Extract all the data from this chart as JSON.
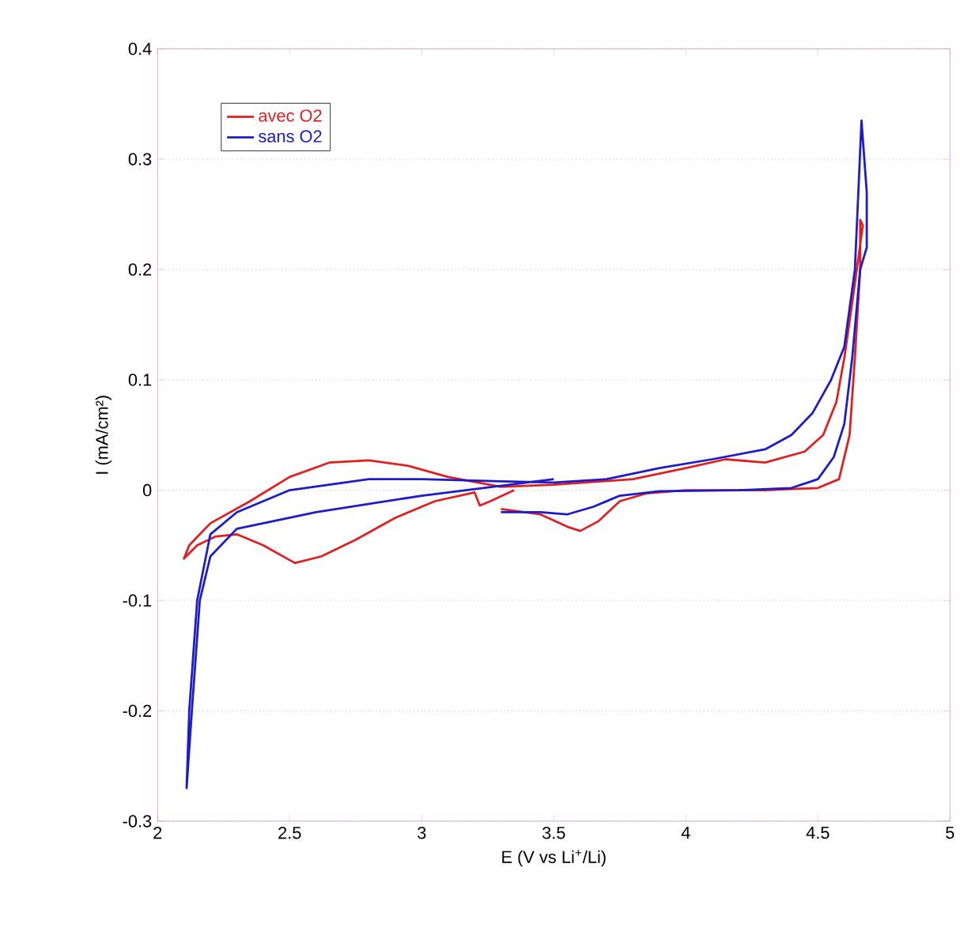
{
  "chart_data": {
    "type": "line",
    "xlabel": "E  (V vs Li$^{+}$/Li)",
    "ylabel": "I (mA/cm²)",
    "xlim": [
      2,
      5
    ],
    "ylim": [
      -0.3,
      0.4
    ],
    "xticks": [
      2,
      2.5,
      3,
      3.5,
      4,
      4.5,
      5
    ],
    "yticks": [
      -0.3,
      -0.2,
      -0.1,
      0,
      0.1,
      0.2,
      0.3,
      0.4
    ],
    "grid": "y",
    "legend": "top left",
    "marker": "none",
    "line_style": "solid",
    "series": [
      {
        "name": "avec O2",
        "color": "#e02020",
        "x": [
          3.3,
          3.45,
          3.55,
          3.6,
          3.67,
          3.75,
          3.85,
          4.0,
          4.3,
          4.5,
          4.58,
          4.62,
          4.64,
          4.66,
          4.66,
          4.67,
          4.63,
          4.6,
          4.57,
          4.52,
          4.45,
          4.3,
          4.15,
          4.0,
          3.8,
          3.5,
          3.3,
          3.1,
          2.95,
          2.8,
          2.65,
          2.5,
          2.35,
          2.2,
          2.12,
          2.1,
          2.15,
          2.22,
          2.3,
          2.4,
          2.52,
          2.62,
          2.75,
          2.9,
          3.05,
          3.2,
          3.22,
          3.26,
          3.35
        ],
        "values": [
          -0.017,
          -0.022,
          -0.033,
          -0.037,
          -0.028,
          -0.01,
          -0.003,
          0,
          0,
          0.002,
          0.01,
          0.05,
          0.12,
          0.2,
          0.245,
          0.24,
          0.17,
          0.12,
          0.08,
          0.05,
          0.035,
          0.025,
          0.028,
          0.02,
          0.01,
          0.005,
          0.003,
          0.012,
          0.022,
          0.027,
          0.025,
          0.012,
          -0.01,
          -0.03,
          -0.05,
          -0.062,
          -0.05,
          -0.042,
          -0.04,
          -0.05,
          -0.066,
          -0.06,
          -0.045,
          -0.025,
          -0.01,
          -0.002,
          -0.014,
          -0.01,
          0
        ]
      },
      {
        "name": "sans O2",
        "color": "#1c1cc8",
        "x": [
          3.3,
          3.45,
          3.55,
          3.65,
          3.75,
          3.9,
          4.2,
          4.4,
          4.5,
          4.56,
          4.6,
          4.63,
          4.66,
          4.685,
          4.685,
          4.665,
          4.655,
          4.64,
          4.6,
          4.55,
          4.48,
          4.4,
          4.3,
          4.1,
          3.9,
          3.7,
          3.5,
          3.3,
          3.0,
          2.8,
          2.5,
          2.3,
          2.2,
          2.15,
          2.12,
          2.11,
          2.13,
          2.16,
          2.2,
          2.3,
          2.6,
          3.0,
          3.5
        ],
        "values": [
          -0.02,
          -0.02,
          -0.022,
          -0.015,
          -0.005,
          -0.001,
          0,
          0.002,
          0.01,
          0.03,
          0.06,
          0.12,
          0.2,
          0.22,
          0.27,
          0.335,
          0.28,
          0.2,
          0.13,
          0.1,
          0.07,
          0.05,
          0.037,
          0.028,
          0.02,
          0.01,
          0.007,
          0.008,
          0.01,
          0.01,
          0,
          -0.02,
          -0.04,
          -0.1,
          -0.2,
          -0.27,
          -0.2,
          -0.1,
          -0.06,
          -0.035,
          -0.02,
          -0.005,
          0.01
        ]
      }
    ]
  }
}
